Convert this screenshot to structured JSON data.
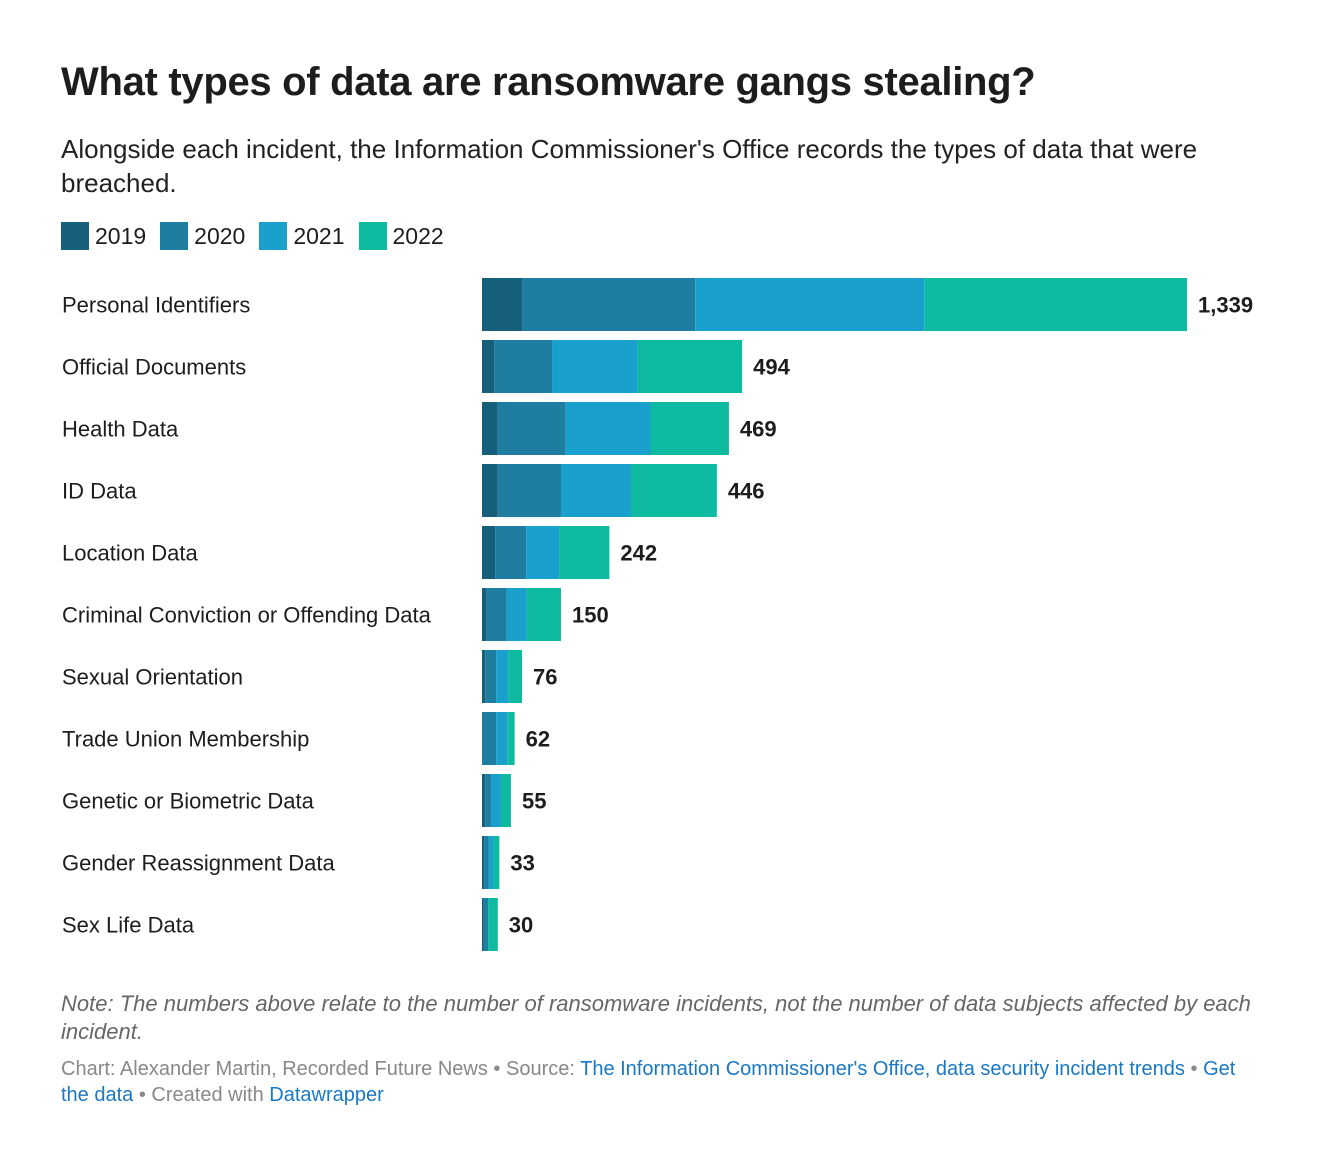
{
  "title": "What types of data are ransomware gangs stealing?",
  "subtitle": "Alongside each incident, the Information Commissioner's Office records the types of data that were breached.",
  "note": "Note: The numbers above relate to the number of ransomware incidents, not the number of data subjects affected by each incident.",
  "footer": {
    "chart_label": "Chart: Alexander Martin, Recorded Future News",
    "sep": " • ",
    "source_label": "Source: ",
    "source_link": "The Information Commissioner's Office, data security incident trends",
    "get_data": "Get the data",
    "created_with": "Created with ",
    "datawrapper": "Datawrapper"
  },
  "chart_data": {
    "type": "bar",
    "orientation": "horizontal",
    "stacked": true,
    "grid": false,
    "legend_placement": "top-left",
    "categories": [
      "Personal Identifiers",
      "Official Documents",
      "Health Data",
      "ID Data",
      "Location Data",
      "Criminal Conviction or Offending Data",
      "Sexual Orientation",
      "Trade Union Membership",
      "Genetic or Biometric Data",
      "Gender Reassignment Data",
      "Sex Life Data"
    ],
    "totals": [
      "1,339",
      "494",
      "469",
      "446",
      "242",
      "150",
      "76",
      "62",
      "55",
      "33",
      "30"
    ],
    "series": [
      {
        "name": "2019",
        "color": "#155f7a",
        "values": [
          76,
          23,
          30,
          30,
          25,
          9,
          6,
          0,
          6,
          4,
          3
        ]
      },
      {
        "name": "2020",
        "color": "#1f7ea0",
        "values": [
          329,
          110,
          129,
          120,
          59,
          38,
          21,
          27,
          11,
          9,
          9
        ]
      },
      {
        "name": "2021",
        "color": "#19a0cc",
        "values": [
          435,
          163,
          161,
          133,
          63,
          38,
          23,
          21,
          19,
          9,
          0
        ]
      },
      {
        "name": "2022",
        "color": "#0fbba0",
        "values": [
          499,
          198,
          149,
          163,
          95,
          65,
          26,
          14,
          19,
          11,
          18
        ]
      }
    ]
  }
}
